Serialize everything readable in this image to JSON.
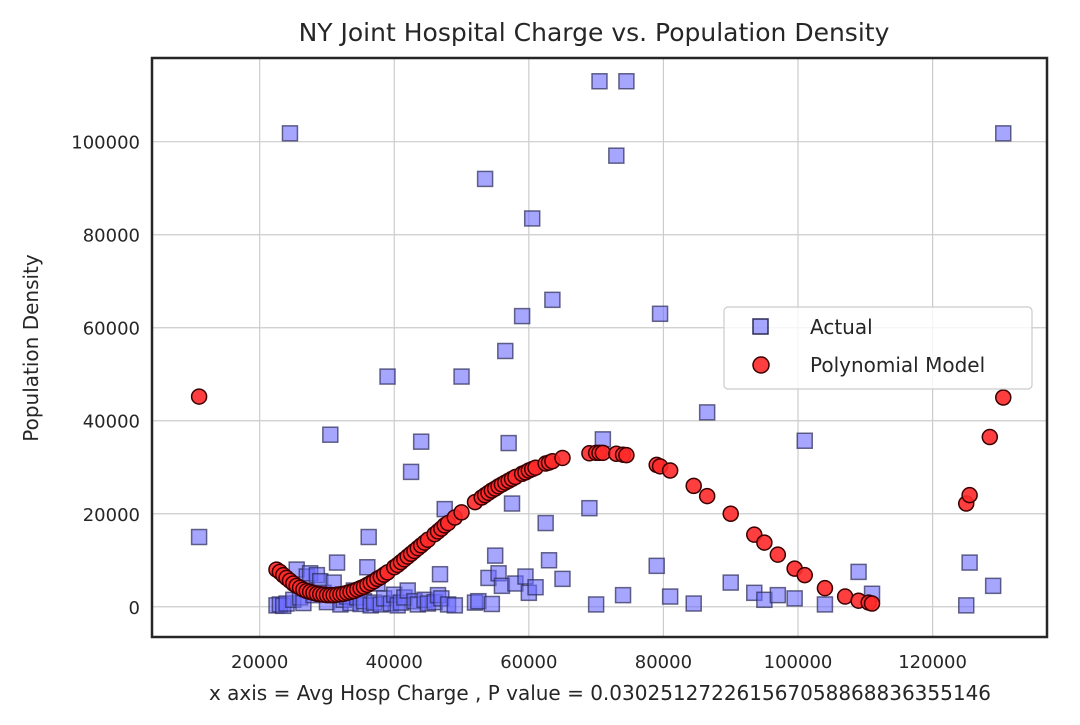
{
  "chart_data": {
    "type": "scatter",
    "title": "NY Joint Hospital Charge vs. Population Density",
    "xlabel": "x axis = Avg Hosp Charge , P value = 0.030251272261567058868836355146",
    "ylabel": "Population Density",
    "xlim": [
      4000,
      137000
    ],
    "ylim": [
      -6500,
      118000
    ],
    "xticks": [
      20000,
      40000,
      60000,
      80000,
      100000,
      120000
    ],
    "xtick_labels": [
      "20000",
      "40000",
      "60000",
      "80000",
      "100000",
      "120000"
    ],
    "yticks": [
      0,
      20000,
      40000,
      60000,
      80000,
      100000
    ],
    "ytick_labels": [
      "0",
      "20000",
      "40000",
      "60000",
      "80000",
      "100000"
    ],
    "grid": true,
    "legend_position": "center-right",
    "series": [
      {
        "name": "Actual",
        "marker": "square",
        "color": "#6a6aff",
        "points": [
          [
            11000,
            15000
          ],
          [
            22500,
            300
          ],
          [
            23000,
            500
          ],
          [
            23500,
            200
          ],
          [
            24000,
            700
          ],
          [
            24500,
            101800
          ],
          [
            25000,
            1500
          ],
          [
            25500,
            8000
          ],
          [
            26000,
            2000
          ],
          [
            26500,
            800
          ],
          [
            27000,
            6500
          ],
          [
            27500,
            7200
          ],
          [
            28000,
            2500
          ],
          [
            28500,
            6800
          ],
          [
            29000,
            5500
          ],
          [
            29500,
            3000
          ],
          [
            30000,
            1000
          ],
          [
            30500,
            37000
          ],
          [
            31000,
            5200
          ],
          [
            31500,
            9500
          ],
          [
            32000,
            500
          ],
          [
            32500,
            1500
          ],
          [
            33000,
            2200
          ],
          [
            33500,
            800
          ],
          [
            34000,
            3500
          ],
          [
            34500,
            2000
          ],
          [
            35000,
            600
          ],
          [
            35500,
            1200
          ],
          [
            36000,
            8500
          ],
          [
            36200,
            15000
          ],
          [
            36500,
            300
          ],
          [
            37000,
            900
          ],
          [
            37500,
            5000
          ],
          [
            38000,
            500
          ],
          [
            38500,
            1800
          ],
          [
            39000,
            49500
          ],
          [
            39500,
            700
          ],
          [
            40000,
            2600
          ],
          [
            40500,
            300
          ],
          [
            41000,
            900
          ],
          [
            41500,
            2000
          ],
          [
            42000,
            3500
          ],
          [
            42500,
            29000
          ],
          [
            43000,
            1200
          ],
          [
            43500,
            500
          ],
          [
            44000,
            35500
          ],
          [
            44500,
            1500
          ],
          [
            45000,
            700
          ],
          [
            46000,
            1000
          ],
          [
            46500,
            2500
          ],
          [
            46800,
            7000
          ],
          [
            47000,
            1800
          ],
          [
            47500,
            21000
          ],
          [
            48000,
            500
          ],
          [
            49000,
            300
          ],
          [
            50000,
            49500
          ],
          [
            52000,
            900
          ],
          [
            52500,
            1200
          ],
          [
            53500,
            92000
          ],
          [
            54000,
            6200
          ],
          [
            54500,
            600
          ],
          [
            55000,
            11000
          ],
          [
            55500,
            7200
          ],
          [
            56000,
            4500
          ],
          [
            56500,
            55000
          ],
          [
            57000,
            35200
          ],
          [
            57500,
            22200
          ],
          [
            58000,
            5000
          ],
          [
            59000,
            62500
          ],
          [
            59500,
            6500
          ],
          [
            60000,
            3000
          ],
          [
            60500,
            83500
          ],
          [
            61000,
            4200
          ],
          [
            62500,
            18000
          ],
          [
            63000,
            10000
          ],
          [
            63500,
            66000
          ],
          [
            65000,
            6000
          ],
          [
            69000,
            21200
          ],
          [
            70000,
            500
          ],
          [
            70500,
            113000
          ],
          [
            71000,
            36000
          ],
          [
            73000,
            97000
          ],
          [
            74000,
            2500
          ],
          [
            74500,
            113000
          ],
          [
            79000,
            8800
          ],
          [
            79500,
            63000
          ],
          [
            81000,
            2200
          ],
          [
            84500,
            700
          ],
          [
            86500,
            41800
          ],
          [
            90000,
            5200
          ],
          [
            93500,
            3000
          ],
          [
            95000,
            1500
          ],
          [
            97000,
            2500
          ],
          [
            99500,
            1800
          ],
          [
            101000,
            35700
          ],
          [
            104000,
            500
          ],
          [
            109000,
            7500
          ],
          [
            111000,
            2800
          ],
          [
            125000,
            300
          ],
          [
            125500,
            9500
          ],
          [
            129000,
            4500
          ],
          [
            130500,
            101800
          ]
        ]
      },
      {
        "name": "Polynomial Model",
        "marker": "circle",
        "color": "#ff2a2a",
        "points": [
          [
            11000,
            45200
          ],
          [
            22500,
            8000
          ],
          [
            23000,
            7500
          ],
          [
            23500,
            6800
          ],
          [
            24000,
            6200
          ],
          [
            24500,
            5600
          ],
          [
            25000,
            5000
          ],
          [
            25500,
            4500
          ],
          [
            26000,
            4100
          ],
          [
            26500,
            3700
          ],
          [
            27000,
            3400
          ],
          [
            27500,
            3200
          ],
          [
            28000,
            3000
          ],
          [
            28500,
            2800
          ],
          [
            29000,
            2700
          ],
          [
            29500,
            2600
          ],
          [
            30000,
            2500
          ],
          [
            30500,
            2500
          ],
          [
            31000,
            2500
          ],
          [
            31500,
            2600
          ],
          [
            32000,
            2700
          ],
          [
            32500,
            2800
          ],
          [
            33000,
            3000
          ],
          [
            33500,
            3200
          ],
          [
            34000,
            3400
          ],
          [
            34500,
            3700
          ],
          [
            35000,
            4000
          ],
          [
            35500,
            4300
          ],
          [
            36000,
            4700
          ],
          [
            36500,
            5100
          ],
          [
            37000,
            5500
          ],
          [
            37500,
            6000
          ],
          [
            38000,
            6400
          ],
          [
            38500,
            6900
          ],
          [
            39000,
            7400
          ],
          [
            40000,
            8500
          ],
          [
            40500,
            9000
          ],
          [
            41000,
            9600
          ],
          [
            41500,
            10200
          ],
          [
            42000,
            10800
          ],
          [
            42500,
            11400
          ],
          [
            43000,
            12000
          ],
          [
            43500,
            12600
          ],
          [
            44000,
            13200
          ],
          [
            44500,
            13800
          ],
          [
            45000,
            14400
          ],
          [
            46000,
            15600
          ],
          [
            46500,
            16200
          ],
          [
            47000,
            16800
          ],
          [
            47500,
            17500
          ],
          [
            48000,
            18000
          ],
          [
            49000,
            19200
          ],
          [
            50000,
            20300
          ],
          [
            52000,
            22500
          ],
          [
            53000,
            23500
          ],
          [
            53500,
            24000
          ],
          [
            54000,
            24500
          ],
          [
            54500,
            25000
          ],
          [
            55000,
            25400
          ],
          [
            55500,
            25900
          ],
          [
            56000,
            26300
          ],
          [
            56500,
            26700
          ],
          [
            57000,
            27100
          ],
          [
            57500,
            27500
          ],
          [
            58000,
            27900
          ],
          [
            59000,
            28600
          ],
          [
            59500,
            28900
          ],
          [
            60000,
            29300
          ],
          [
            60500,
            29600
          ],
          [
            61000,
            29900
          ],
          [
            62500,
            30800
          ],
          [
            63000,
            31000
          ],
          [
            63500,
            31300
          ],
          [
            65000,
            32000
          ],
          [
            69000,
            33000
          ],
          [
            70000,
            33100
          ],
          [
            70500,
            33100
          ],
          [
            71000,
            33100
          ],
          [
            73000,
            32900
          ],
          [
            74000,
            32700
          ],
          [
            74500,
            32600
          ],
          [
            79000,
            30500
          ],
          [
            79500,
            30200
          ],
          [
            81000,
            29300
          ],
          [
            84500,
            26000
          ],
          [
            86500,
            23800
          ],
          [
            90000,
            20000
          ],
          [
            93500,
            15500
          ],
          [
            95000,
            13800
          ],
          [
            97000,
            11200
          ],
          [
            99500,
            8200
          ],
          [
            101000,
            6800
          ],
          [
            104000,
            4000
          ],
          [
            107000,
            2200
          ],
          [
            109000,
            1300
          ],
          [
            110500,
            900
          ],
          [
            111000,
            700
          ],
          [
            125000,
            22200
          ],
          [
            125500,
            24000
          ],
          [
            128500,
            36500
          ],
          [
            130500,
            45000
          ]
        ]
      }
    ]
  }
}
